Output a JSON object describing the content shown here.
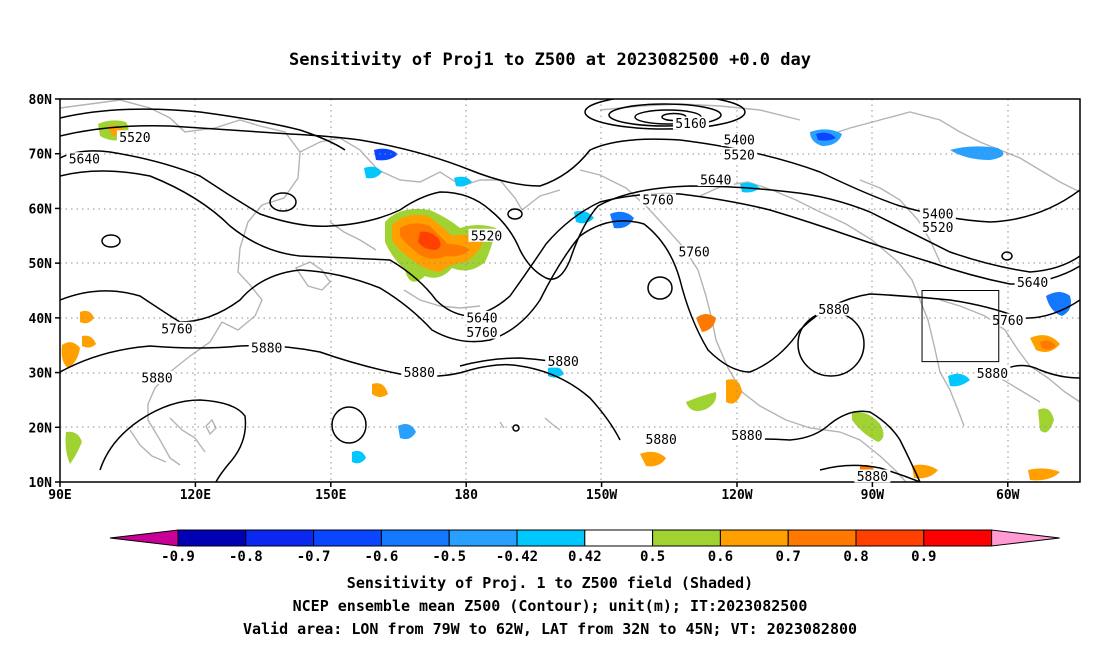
{
  "title": "Sensitivity of Proj1 to Z500 at 2023082500 +0.0 day",
  "map": {
    "lat_labels": [
      "80N",
      "70N",
      "60N",
      "50N",
      "40N",
      "30N",
      "20N",
      "10N"
    ],
    "lon_labels": [
      "90E",
      "120E",
      "150E",
      "180",
      "150W",
      "120W",
      "90W",
      "60W"
    ],
    "contour_labels": [
      {
        "text": "5160",
        "lon": -130.2,
        "lat": 75.5
      },
      {
        "text": "5400",
        "lon": -119.5,
        "lat": 72.5
      },
      {
        "text": "5520",
        "lon": -119.5,
        "lat": 69.8
      },
      {
        "text": "5520",
        "lon": 106.6,
        "lat": 73.0
      },
      {
        "text": "5640",
        "lon": -124.7,
        "lat": 65.2
      },
      {
        "text": "5640",
        "lon": 95.4,
        "lat": 69.0
      },
      {
        "text": "5760",
        "lon": -137.5,
        "lat": 61.5
      },
      {
        "text": "5520",
        "lon": -175.5,
        "lat": 55.0
      },
      {
        "text": "5760",
        "lon": -129.5,
        "lat": 52.0
      },
      {
        "text": "5400",
        "lon": -75.5,
        "lat": 59.0
      },
      {
        "text": "5520",
        "lon": -75.5,
        "lat": 56.5
      },
      {
        "text": "5640",
        "lon": -54.5,
        "lat": 46.5
      },
      {
        "text": "5760",
        "lon": -60.0,
        "lat": 39.5
      },
      {
        "text": "5880",
        "lon": -98.5,
        "lat": 41.5
      },
      {
        "text": "5760",
        "lon": 115.9,
        "lat": 38.0
      },
      {
        "text": "5640",
        "lon": -176.5,
        "lat": 40.0
      },
      {
        "text": "5760",
        "lon": -176.5,
        "lat": 37.3
      },
      {
        "text": "5880",
        "lon": 135.8,
        "lat": 34.5
      },
      {
        "text": "5880",
        "lon": 169.6,
        "lat": 30.0
      },
      {
        "text": "5880",
        "lon": 111.5,
        "lat": 29.0
      },
      {
        "text": "5880",
        "lon": -158.5,
        "lat": 32.0
      },
      {
        "text": "5880",
        "lon": -136.8,
        "lat": 17.8
      },
      {
        "text": "5880",
        "lon": -117.8,
        "lat": 18.5
      },
      {
        "text": "5880",
        "lon": -63.4,
        "lat": 29.8
      },
      {
        "text": "5880",
        "lon": -90.0,
        "lat": 11.0
      }
    ],
    "valid_box": {
      "lon_west": -79,
      "lon_east": -62,
      "lat_south": 32,
      "lat_north": 45
    }
  },
  "colorbar": {
    "labels": [
      "-0.9",
      "-0.8",
      "-0.7",
      "-0.6",
      "-0.5",
      "-0.42",
      "0.42",
      "0.5",
      "0.6",
      "0.7",
      "0.8",
      "0.9"
    ],
    "colors": [
      "#0000b4",
      "#0a28f0",
      "#0a46ff",
      "#1478ff",
      "#28a0ff",
      "#00c8ff",
      "#ffffff",
      "#a0d232",
      "#ffa000",
      "#ff7800",
      "#ff4000",
      "#ff0000"
    ],
    "low_end_color": "#c80096",
    "high_end_color": "#ff9ad2"
  },
  "caption": {
    "line1": "Sensitivity of Proj. 1 to Z500 field (Shaded)",
    "line2": "NCEP ensemble mean Z500 (Contour); unit(m); IT:2023082500",
    "line3": "Valid area: LON from 79W to 62W, LAT from 32N to 45N; VT: 2023082800"
  }
}
